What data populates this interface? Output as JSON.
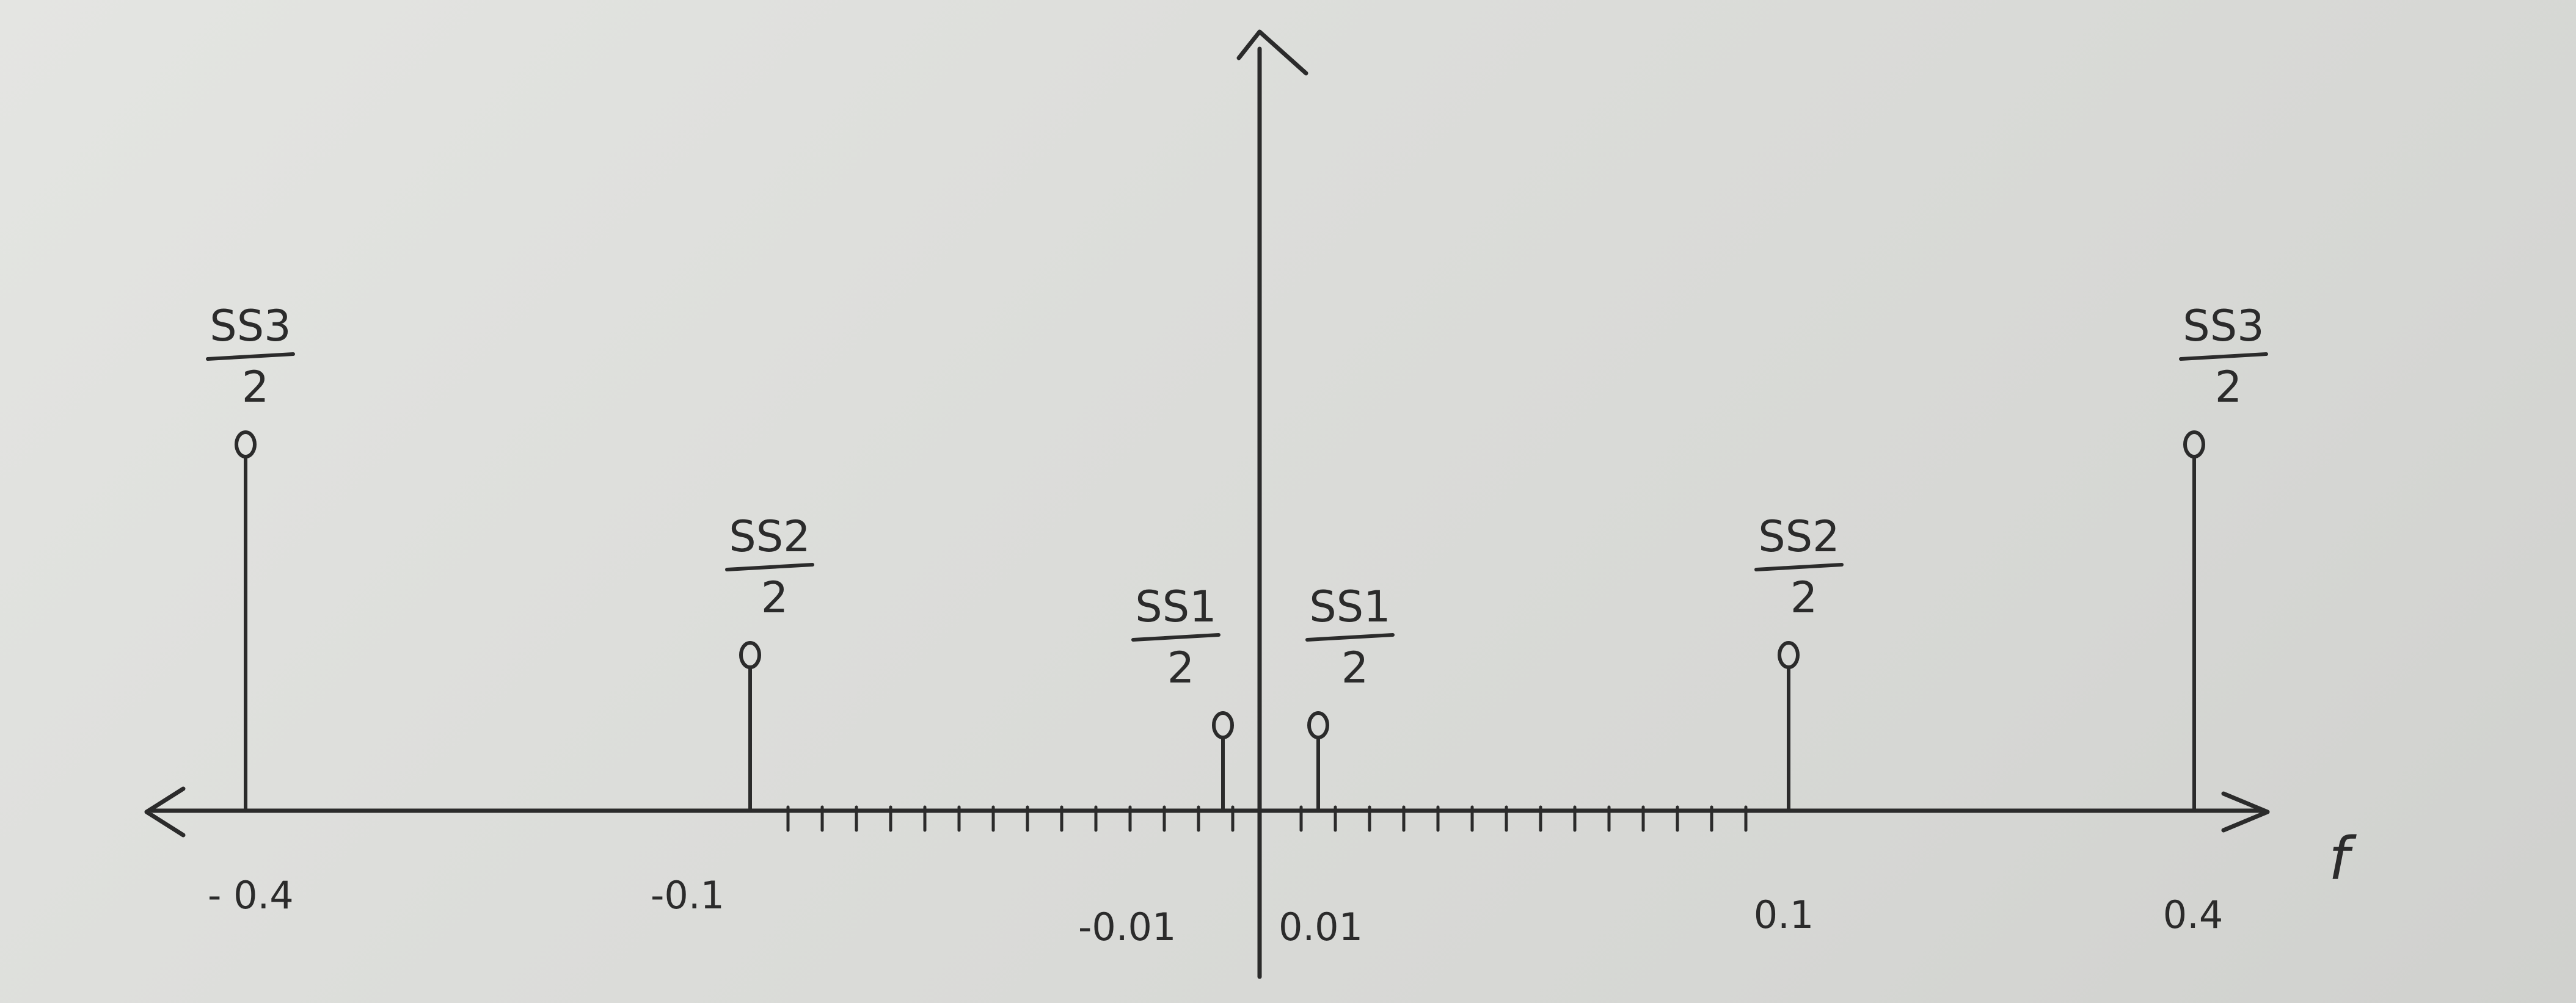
{
  "axis": {
    "label": "f"
  },
  "impulses": [
    {
      "f": -0.4,
      "tick_label": "- 0.4",
      "num": "SS3",
      "den": "2",
      "height": 3
    },
    {
      "f": -0.1,
      "tick_label": "-0.1",
      "num": "SS2",
      "den": "2",
      "height": 1.5
    },
    {
      "f": -0.01,
      "tick_label": "-0.01",
      "num": "SS1",
      "den": "2",
      "height": 1
    },
    {
      "f": 0.01,
      "tick_label": "0.01",
      "num": "SS1",
      "den": "2",
      "height": 1
    },
    {
      "f": 0.1,
      "tick_label": "0.1",
      "num": "SS2",
      "den": "2",
      "height": 1.5
    },
    {
      "f": 0.4,
      "tick_label": "0.4",
      "num": "SS3",
      "den": "2",
      "height": 3
    }
  ],
  "colors": {
    "ink": "#2b2b2b",
    "paper": "#dcddda"
  }
}
